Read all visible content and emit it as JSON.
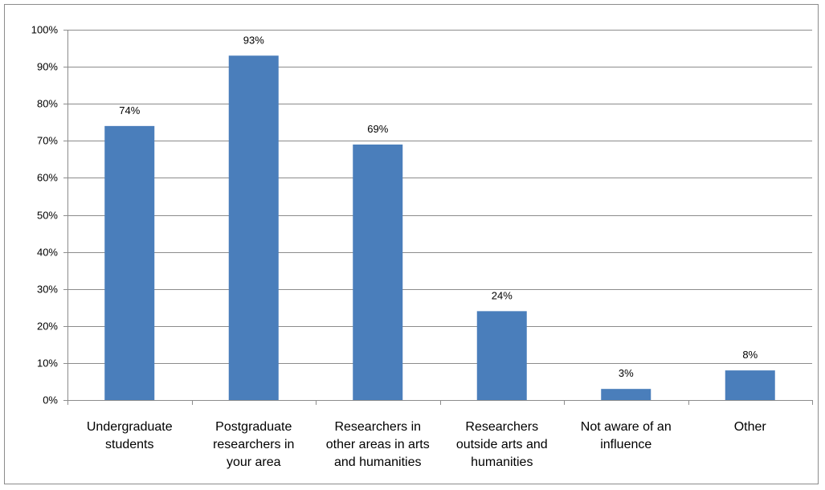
{
  "chart_data": {
    "type": "bar",
    "title": "",
    "xlabel": "",
    "ylabel": "",
    "categories": [
      [
        "Undergraduate",
        "students"
      ],
      [
        "Postgraduate",
        "researchers in",
        "your area"
      ],
      [
        "Researchers in",
        "other areas in arts",
        "and humanities"
      ],
      [
        "Researchers",
        "outside arts and",
        "humanities"
      ],
      [
        "Not aware of an",
        "influence"
      ],
      [
        "Other"
      ]
    ],
    "values": [
      74,
      93,
      69,
      24,
      3,
      8
    ],
    "value_labels": [
      "74%",
      "93%",
      "69%",
      "24%",
      "3%",
      "8%"
    ],
    "ylim": [
      0,
      100
    ],
    "yticks": [
      0,
      10,
      20,
      30,
      40,
      50,
      60,
      70,
      80,
      90,
      100
    ],
    "ytick_labels": [
      "0%",
      "10%",
      "20%",
      "30%",
      "40%",
      "50%",
      "60%",
      "70%",
      "80%",
      "90%",
      "100%"
    ],
    "grid": true,
    "legend": "none",
    "colors": {
      "bar": "#4a7ebb",
      "grid": "#8c8c8c",
      "axis": "#8c8c8c",
      "border": "#8c8c8c"
    }
  }
}
